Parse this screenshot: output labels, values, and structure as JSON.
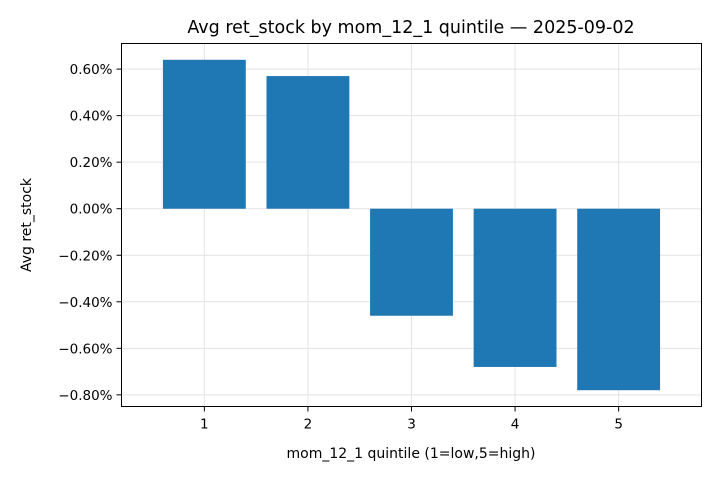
{
  "chart_data": {
    "type": "bar",
    "title": "Avg ret_stock by mom_12_1 quintile — 2025-09-02",
    "xlabel": "mom_12_1 quintile (1=low,5=high)",
    "ylabel": "Avg ret_stock",
    "categories": [
      "1",
      "2",
      "3",
      "4",
      "5"
    ],
    "values": [
      0.64,
      0.57,
      -0.46,
      -0.68,
      -0.78
    ],
    "value_unit": "%",
    "ylim": [
      -0.85,
      0.71
    ],
    "yticks": [
      0.6,
      0.4,
      0.2,
      0.0,
      -0.2,
      -0.4,
      -0.6,
      -0.8
    ],
    "ytick_labels": [
      "0.60%",
      "0.40%",
      "0.20%",
      "0.00%",
      "−0.20%",
      "−0.40%",
      "−0.60%",
      "−0.80%"
    ],
    "grid": true,
    "bar_color": "#1f77b4"
  }
}
